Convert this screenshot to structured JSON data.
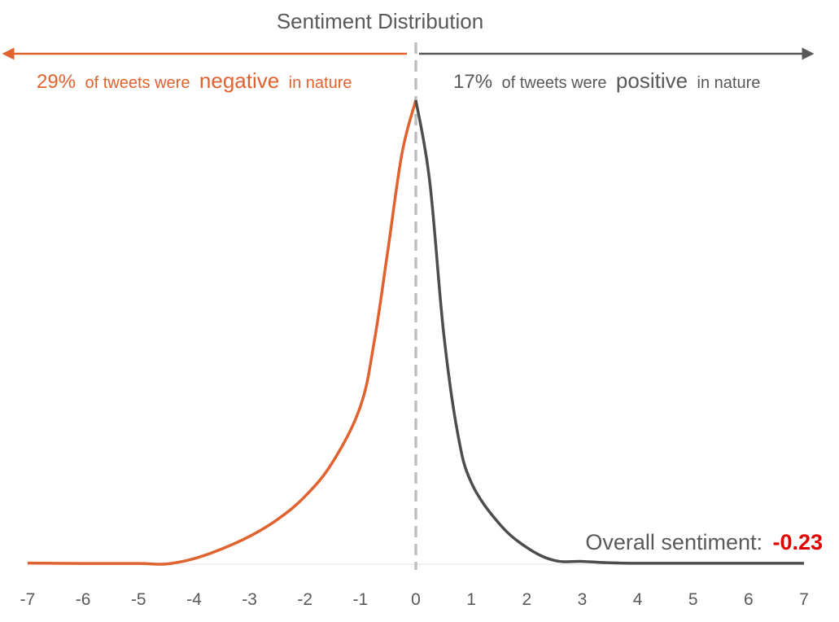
{
  "chart_data": {
    "type": "area",
    "title": "Sentiment Distribution",
    "xlabel": "",
    "ylabel": "",
    "xlim": [
      -7,
      7
    ],
    "x_ticks": [
      "-7",
      "-6",
      "-5",
      "-4",
      "-3",
      "-2",
      "-1",
      "0",
      "1",
      "2",
      "3",
      "4",
      "5",
      "6",
      "7"
    ],
    "series": [
      {
        "side": "negative",
        "color": "#E0622F",
        "points": [
          [
            -7,
            0.0025
          ],
          [
            -6,
            0.0015
          ],
          [
            -5,
            0.0015
          ],
          [
            -4.5,
            0.0005
          ],
          [
            -4,
            0.012
          ],
          [
            -3.5,
            0.033
          ],
          [
            -3,
            0.06
          ],
          [
            -2.5,
            0.096
          ],
          [
            -2,
            0.146
          ],
          [
            -1.5,
            0.22
          ],
          [
            -1,
            0.34
          ],
          [
            -0.75,
            0.48
          ],
          [
            -0.5,
            0.68
          ],
          [
            -0.25,
            0.885
          ],
          [
            0,
            1.0
          ]
        ]
      },
      {
        "side": "positive",
        "color": "#4D4D4D",
        "points": [
          [
            0,
            1.0
          ],
          [
            0.25,
            0.825
          ],
          [
            0.5,
            0.5
          ],
          [
            0.75,
            0.285
          ],
          [
            1,
            0.176
          ],
          [
            1.5,
            0.088
          ],
          [
            2,
            0.036
          ],
          [
            2.5,
            0.008
          ],
          [
            3,
            0.006
          ],
          [
            3.5,
            0.003
          ],
          [
            4,
            0.002
          ],
          [
            5,
            0.002
          ],
          [
            6,
            0.002
          ],
          [
            7,
            0.002
          ]
        ]
      }
    ],
    "annotations": {
      "negative": {
        "pct": "29%",
        "pre": "of tweets were",
        "word": "negative",
        "post": "in nature",
        "color": "#E0622F"
      },
      "positive": {
        "pct": "17%",
        "pre": "of tweets were",
        "word": "positive",
        "post": "in nature",
        "color": "#595959"
      },
      "overall_label": "Overall sentiment:",
      "overall_value": "-0.23",
      "overall_value_color": "#E00000"
    },
    "divider_at": 0,
    "grid": false,
    "legend": "none"
  }
}
